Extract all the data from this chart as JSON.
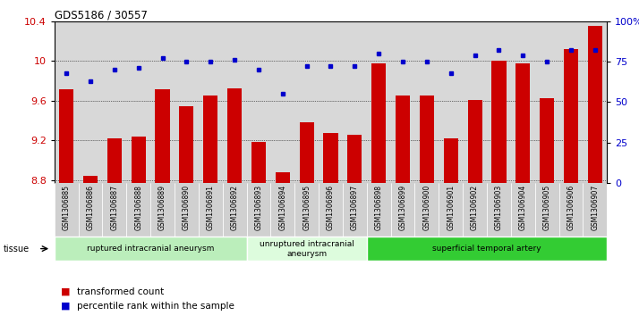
{
  "title": "GDS5186 / 30557",
  "samples": [
    "GSM1306885",
    "GSM1306886",
    "GSM1306887",
    "GSM1306888",
    "GSM1306889",
    "GSM1306890",
    "GSM1306891",
    "GSM1306892",
    "GSM1306893",
    "GSM1306894",
    "GSM1306895",
    "GSM1306896",
    "GSM1306897",
    "GSM1306898",
    "GSM1306899",
    "GSM1306900",
    "GSM1306901",
    "GSM1306902",
    "GSM1306903",
    "GSM1306904",
    "GSM1306905",
    "GSM1306906",
    "GSM1306907"
  ],
  "bar_values": [
    9.71,
    8.84,
    9.22,
    9.24,
    9.71,
    9.54,
    9.65,
    9.72,
    9.18,
    8.88,
    9.38,
    9.27,
    9.26,
    9.97,
    9.65,
    9.65,
    9.22,
    9.61,
    10.0,
    9.97,
    9.62,
    10.12,
    10.35
  ],
  "dot_values": [
    68,
    63,
    70,
    71,
    77,
    75,
    75,
    76,
    70,
    55,
    72,
    72,
    72,
    80,
    75,
    75,
    68,
    79,
    82,
    79,
    75,
    82,
    82
  ],
  "ylim_left": [
    8.77,
    10.4
  ],
  "ylim_right": [
    0,
    100
  ],
  "yticks_left": [
    8.8,
    9.2,
    9.6,
    10.0,
    10.4
  ],
  "ytick_labels_left": [
    "8.8",
    "9.2",
    "9.6",
    "10",
    "10.4"
  ],
  "yticks_right": [
    0,
    25,
    50,
    75,
    100
  ],
  "ytick_labels_right": [
    "0",
    "25",
    "50",
    "75",
    "100%"
  ],
  "bar_color": "#cc0000",
  "dot_color": "#0000cc",
  "bg_color": "#d8d8d8",
  "plot_bg": "#ffffff",
  "groups": [
    {
      "label": "ruptured intracranial aneurysm",
      "start": 0,
      "end": 7,
      "color": "#bbeebb"
    },
    {
      "label": "unruptured intracranial\naneurysm",
      "start": 8,
      "end": 12,
      "color": "#ddfcdd"
    },
    {
      "label": "superficial temporal artery",
      "start": 13,
      "end": 22,
      "color": "#33cc33"
    }
  ],
  "legend_bar_label": "transformed count",
  "legend_dot_label": "percentile rank within the sample",
  "tissue_label": "tissue"
}
